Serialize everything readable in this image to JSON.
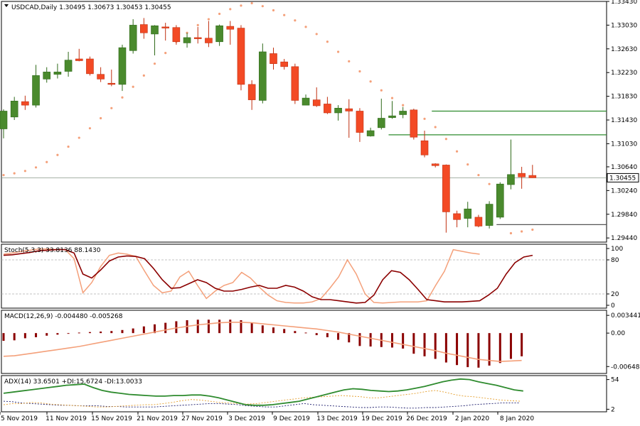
{
  "chart_data": [
    {
      "type": "candlestick",
      "header": {
        "symbol": "USDCAD,Daily",
        "ohlc": "1.30495 1.30673 1.30453 1.30455"
      },
      "y_ticks": [
        "1.33430",
        "1.33030",
        "1.32630",
        "1.32230",
        "1.31830",
        "1.31430",
        "1.31030",
        "1.30640",
        "1.30240",
        "1.29840",
        "1.29440"
      ],
      "ylim": [
        1.2937,
        1.3343
      ],
      "current_price_label": "1.30455",
      "current_price": 1.30455,
      "candles": [
        {
          "o": 1.3128,
          "h": 1.3161,
          "l": 1.3112,
          "c": 1.3158
        },
        {
          "o": 1.3148,
          "h": 1.3182,
          "l": 1.3143,
          "c": 1.3175
        },
        {
          "o": 1.3174,
          "h": 1.3184,
          "l": 1.316,
          "c": 1.3168
        },
        {
          "o": 1.3168,
          "h": 1.3236,
          "l": 1.3164,
          "c": 1.3218
        },
        {
          "o": 1.3212,
          "h": 1.3232,
          "l": 1.3206,
          "c": 1.3224
        },
        {
          "o": 1.322,
          "h": 1.3238,
          "l": 1.3213,
          "c": 1.3224
        },
        {
          "o": 1.3225,
          "h": 1.3258,
          "l": 1.3216,
          "c": 1.3244
        },
        {
          "o": 1.3246,
          "h": 1.3263,
          "l": 1.3242,
          "c": 1.3243
        },
        {
          "o": 1.3246,
          "h": 1.325,
          "l": 1.3218,
          "c": 1.3221
        },
        {
          "o": 1.322,
          "h": 1.3232,
          "l": 1.3207,
          "c": 1.3212
        },
        {
          "o": 1.3205,
          "h": 1.3228,
          "l": 1.32,
          "c": 1.3203
        },
        {
          "o": 1.3203,
          "h": 1.327,
          "l": 1.3192,
          "c": 1.3265
        },
        {
          "o": 1.326,
          "h": 1.3313,
          "l": 1.3255,
          "c": 1.3303
        },
        {
          "o": 1.3304,
          "h": 1.3315,
          "l": 1.328,
          "c": 1.329
        },
        {
          "o": 1.3288,
          "h": 1.3303,
          "l": 1.3252,
          "c": 1.3302
        },
        {
          "o": 1.33,
          "h": 1.3307,
          "l": 1.3277,
          "c": 1.3298
        },
        {
          "o": 1.3299,
          "h": 1.3303,
          "l": 1.327,
          "c": 1.3275
        },
        {
          "o": 1.3273,
          "h": 1.329,
          "l": 1.3265,
          "c": 1.3282
        },
        {
          "o": 1.3282,
          "h": 1.33,
          "l": 1.3272,
          "c": 1.328
        },
        {
          "o": 1.3281,
          "h": 1.331,
          "l": 1.3266,
          "c": 1.3273
        },
        {
          "o": 1.3275,
          "h": 1.3304,
          "l": 1.3268,
          "c": 1.3302
        },
        {
          "o": 1.3301,
          "h": 1.331,
          "l": 1.327,
          "c": 1.3296
        },
        {
          "o": 1.3298,
          "h": 1.3303,
          "l": 1.3193,
          "c": 1.3203
        },
        {
          "o": 1.3203,
          "h": 1.321,
          "l": 1.316,
          "c": 1.3177
        },
        {
          "o": 1.3176,
          "h": 1.3272,
          "l": 1.3171,
          "c": 1.3258
        },
        {
          "o": 1.3255,
          "h": 1.3265,
          "l": 1.3228,
          "c": 1.3238
        },
        {
          "o": 1.3241,
          "h": 1.3246,
          "l": 1.3228,
          "c": 1.3233
        },
        {
          "o": 1.3233,
          "h": 1.3238,
          "l": 1.317,
          "c": 1.3176
        },
        {
          "o": 1.3168,
          "h": 1.3186,
          "l": 1.3168,
          "c": 1.318
        },
        {
          "o": 1.3177,
          "h": 1.3198,
          "l": 1.3165,
          "c": 1.3167
        },
        {
          "o": 1.317,
          "h": 1.3182,
          "l": 1.3153,
          "c": 1.3155
        },
        {
          "o": 1.3155,
          "h": 1.3168,
          "l": 1.3142,
          "c": 1.3163
        },
        {
          "o": 1.3162,
          "h": 1.3178,
          "l": 1.3113,
          "c": 1.3158
        },
        {
          "o": 1.3158,
          "h": 1.3163,
          "l": 1.3106,
          "c": 1.3122
        },
        {
          "o": 1.3116,
          "h": 1.313,
          "l": 1.3115,
          "c": 1.3125
        },
        {
          "o": 1.313,
          "h": 1.3179,
          "l": 1.3127,
          "c": 1.3146
        },
        {
          "o": 1.3147,
          "h": 1.3175,
          "l": 1.3145,
          "c": 1.315
        },
        {
          "o": 1.3152,
          "h": 1.3165,
          "l": 1.3146,
          "c": 1.3158
        },
        {
          "o": 1.316,
          "h": 1.3162,
          "l": 1.311,
          "c": 1.3114
        },
        {
          "o": 1.3108,
          "h": 1.3125,
          "l": 1.308,
          "c": 1.3084
        },
        {
          "o": 1.3069,
          "h": 1.307,
          "l": 1.3063,
          "c": 1.3066
        },
        {
          "o": 1.3067,
          "h": 1.3068,
          "l": 1.2953,
          "c": 1.2988
        },
        {
          "o": 1.2985,
          "h": 1.299,
          "l": 1.2962,
          "c": 1.2975
        },
        {
          "o": 1.2977,
          "h": 1.3005,
          "l": 1.2962,
          "c": 1.2993
        },
        {
          "o": 1.2979,
          "h": 1.2983,
          "l": 1.2962,
          "c": 1.2964
        },
        {
          "o": 1.2965,
          "h": 1.3006,
          "l": 1.296,
          "c": 1.3001
        },
        {
          "o": 1.2979,
          "h": 1.3038,
          "l": 1.2976,
          "c": 1.3035
        },
        {
          "o": 1.3034,
          "h": 1.311,
          "l": 1.3026,
          "c": 1.3051
        },
        {
          "o": 1.3053,
          "h": 1.3064,
          "l": 1.3027,
          "c": 1.3047
        },
        {
          "o": 1.30495,
          "h": 1.30673,
          "l": 1.30453,
          "c": 1.30455
        }
      ],
      "psar": [
        1.305,
        1.3053,
        1.3057,
        1.3063,
        1.3072,
        1.3084,
        1.3098,
        1.3113,
        1.3129,
        1.3146,
        1.3163,
        1.3181,
        1.3199,
        1.3218,
        1.3238,
        1.3256,
        1.3275,
        1.329,
        1.3303,
        1.3313,
        1.3322,
        1.333,
        1.3336,
        1.334,
        1.3335,
        1.3328,
        1.332,
        1.3311,
        1.33,
        1.3288,
        1.3275,
        1.3258,
        1.3242,
        1.3225,
        1.3208,
        1.3193,
        1.318,
        1.3168,
        1.3156,
        1.3145,
        1.3131,
        1.3111,
        1.309,
        1.3068,
        1.305,
        1.3035,
        1.3021,
        1.2952,
        1.2955,
        1.2958
      ],
      "levels": [
        {
          "price": 1.3158,
          "from": 40,
          "to": 62
        },
        {
          "price": 1.3118,
          "from": 36,
          "to": 62
        },
        {
          "price": 1.29665,
          "from": 46,
          "to": 62
        }
      ]
    },
    {
      "type": "line",
      "name": "stochastic",
      "header": "Stoch(5,3,3) 33.8136 88.1430",
      "y_ticks": [
        "100",
        "80",
        "20",
        "0"
      ],
      "ylim": [
        0,
        100
      ],
      "levels": [
        80,
        20
      ],
      "series": [
        {
          "values": [
            88,
            89,
            91,
            93,
            96,
            97,
            98,
            98,
            92,
            55,
            48,
            62,
            78,
            85,
            87,
            86,
            82,
            65,
            45,
            30,
            31,
            38,
            45,
            40,
            30,
            25,
            25,
            28,
            32,
            35,
            30,
            30,
            35,
            32,
            25,
            15,
            10,
            10,
            8,
            6,
            4,
            5,
            18,
            45,
            61,
            58,
            45,
            28,
            10,
            8,
            6,
            6,
            6,
            7,
            8,
            18,
            30,
            55,
            75,
            85,
            88
          ]
        },
        {
          "values": [
            90,
            92,
            95,
            97,
            99,
            99,
            98,
            98,
            82,
            22,
            40,
            68,
            88,
            92,
            90,
            86,
            60,
            35,
            22,
            25,
            50,
            60,
            35,
            12,
            25,
            35,
            40,
            58,
            48,
            32,
            18,
            8,
            5,
            4,
            4,
            6,
            12,
            30,
            50,
            80,
            55,
            20,
            5,
            4,
            5,
            6,
            6,
            6,
            8,
            35,
            60,
            98,
            95,
            92,
            90
          ]
        }
      ]
    },
    {
      "type": "bar",
      "name": "macd",
      "header": "MACD(12,26,9) -0.004480 -0.005268",
      "y_ticks": [
        "0.003441",
        "0.00",
        "-0.006485"
      ],
      "ylim": [
        -0.007,
        0.0036
      ],
      "histogram": [
        -0.0015,
        -0.0014,
        -0.001,
        -0.0008,
        -0.0005,
        -0.0003,
        -0.0001,
        0.0001,
        0.0002,
        0.0003,
        0.0004,
        0.0006,
        0.0009,
        0.0013,
        0.0017,
        0.002,
        0.0023,
        0.0025,
        0.0026,
        0.0026,
        0.0026,
        0.0026,
        0.0025,
        0.002,
        0.0015,
        0.0011,
        0.0008,
        0.0004,
        0.0001,
        -0.0004,
        -0.0008,
        -0.0013,
        -0.0018,
        -0.0025,
        -0.0026,
        -0.0027,
        -0.0028,
        -0.003,
        -0.004,
        -0.0045,
        -0.005,
        -0.0057,
        -0.0062,
        -0.0066,
        -0.0067,
        -0.0063,
        -0.0058,
        -0.005,
        -0.0045
      ],
      "signal": [
        -0.0045,
        -0.0044,
        -0.0041,
        -0.0038,
        -0.0035,
        -0.0032,
        -0.0029,
        -0.0026,
        -0.0022,
        -0.0018,
        -0.0014,
        -0.001,
        -0.0006,
        -0.0002,
        0.0002,
        0.0006,
        0.001,
        0.0013,
        0.0016,
        0.0018,
        0.002,
        0.0021,
        0.0021,
        0.002,
        0.0018,
        0.0016,
        0.0014,
        0.0012,
        0.001,
        0.0008,
        0.0005,
        0.0002,
        -0.0002,
        -0.0006,
        -0.001,
        -0.0014,
        -0.0018,
        -0.0022,
        -0.0026,
        -0.003,
        -0.0034,
        -0.0039,
        -0.0043,
        -0.0047,
        -0.0051,
        -0.0053,
        -0.0055,
        -0.0054,
        -0.0053
      ]
    },
    {
      "type": "line",
      "name": "adx",
      "header": "ADX(14) 33.6501 +DI:15.6724 -DI:13.0033",
      "y_ticks": [
        "54",
        "2"
      ],
      "ylim": [
        0,
        56
      ],
      "series": [
        {
          "values": [
            30,
            32,
            34,
            36,
            38,
            40,
            42,
            44,
            45,
            46,
            40,
            35,
            32,
            30,
            28,
            27,
            26,
            25,
            25,
            26,
            26,
            27,
            27,
            25,
            22,
            18,
            14,
            10,
            9,
            9,
            10,
            12,
            14,
            16,
            20,
            24,
            28,
            32,
            36,
            38,
            37,
            35,
            34,
            33,
            34,
            36,
            39,
            42,
            46,
            50,
            53,
            55,
            54,
            50,
            47,
            44,
            40,
            36,
            34
          ]
        },
        {
          "values": [
            10,
            12,
            12,
            14,
            13,
            11,
            10,
            9,
            8,
            7,
            6,
            6,
            7,
            8,
            9,
            10,
            10,
            12,
            14,
            17,
            19,
            18,
            16,
            14,
            13,
            12,
            11,
            12,
            14,
            16,
            18,
            20,
            22,
            23,
            24,
            25,
            26,
            25,
            24,
            22,
            22,
            24,
            26,
            28,
            30,
            33,
            35,
            32,
            28,
            25,
            24,
            22,
            20,
            18,
            17,
            16
          ]
        },
        {
          "values": [
            16,
            15,
            13,
            12,
            11,
            10,
            9,
            9,
            8,
            8,
            8,
            7,
            7,
            6,
            6,
            6,
            6,
            7,
            8,
            9,
            10,
            11,
            12,
            12,
            11,
            10,
            8,
            7,
            6,
            6,
            8,
            10,
            12,
            10,
            9,
            8,
            7,
            6,
            5,
            5,
            6,
            6,
            5,
            4,
            4,
            5,
            5,
            6,
            7,
            8,
            10,
            11,
            12,
            13,
            13,
            13
          ]
        }
      ],
      "x_ticks": [
        "5 Nov 2019",
        "11 Nov 2019",
        "15 Nov 2019",
        "21 Nov 2019",
        "27 Nov 2019",
        "3 Dec 2019",
        "9 Dec 2019",
        "13 Dec 2019",
        "19 Dec 2019",
        "26 Dec 2019",
        "2 Jan 2020",
        "8 Jan 2020"
      ]
    }
  ]
}
